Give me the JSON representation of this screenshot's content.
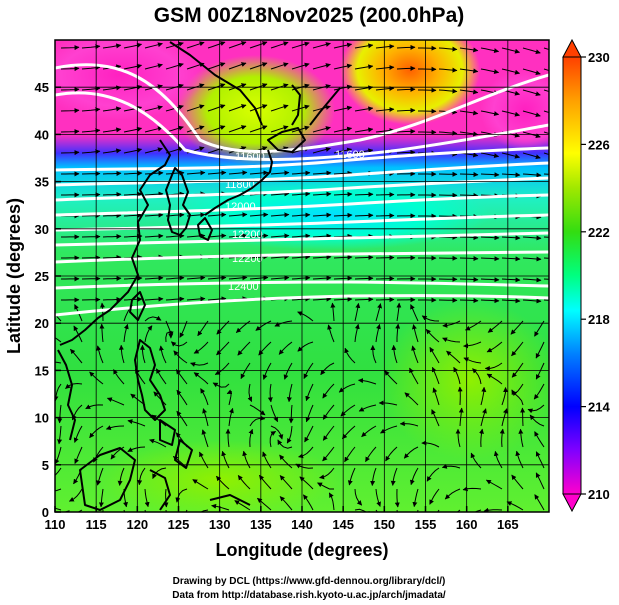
{
  "title": "GSM 00Z18Nov2025 (200.0hPa)",
  "xaxis": {
    "label": "Longitude (degrees)",
    "ticks": [
      "110",
      "115",
      "120",
      "125",
      "130",
      "135",
      "140",
      "145",
      "150",
      "155",
      "160",
      "165"
    ],
    "range": [
      110,
      170
    ]
  },
  "yaxis": {
    "label": "Latitude  (degrees)",
    "ticks": [
      "0",
      "5",
      "10",
      "15",
      "20",
      "25",
      "30",
      "35",
      "40",
      "45"
    ],
    "range": [
      0,
      50
    ]
  },
  "colorbar": {
    "ticks": [
      "230",
      "226",
      "222",
      "218",
      "214",
      "210"
    ],
    "range": [
      210,
      230
    ],
    "colors": [
      "#ff00cc",
      "#8000ff",
      "#0000ff",
      "#0080ff",
      "#00ffff",
      "#00ff80",
      "#33dd11",
      "#a0e800",
      "#ffff00",
      "#ffa000",
      "#ff4000"
    ]
  },
  "contour_labels": [
    "11600",
    "11800",
    "12000",
    "12200",
    "12400"
  ],
  "credits": {
    "line1": "Drawing by DCL (https://www.gfd-dennou.org/library/dcl/)",
    "line2": "Data from http://database.rish.kyoto-u.ac.jp/arch/jmadata/"
  }
}
